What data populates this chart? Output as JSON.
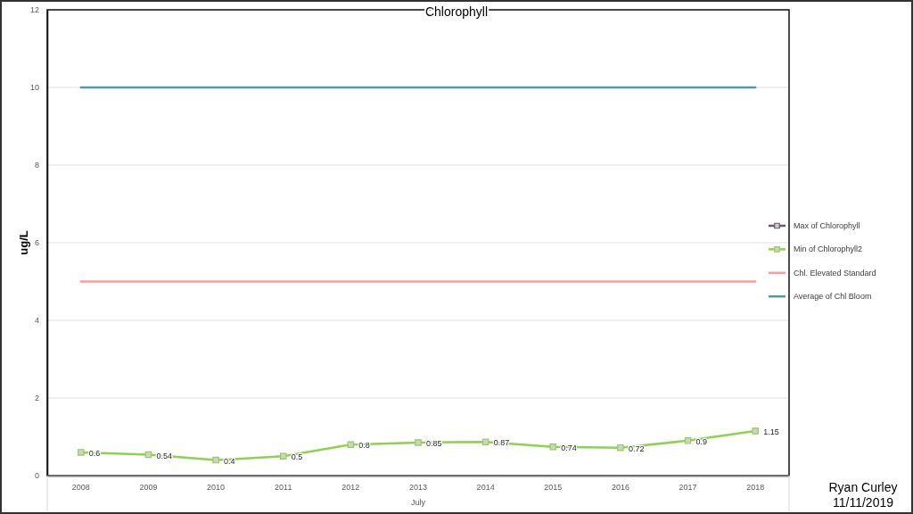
{
  "chart_data": {
    "type": "line",
    "title": "Chlorophyll",
    "ylabel": "ug/L",
    "xlabel": "July",
    "categories": [
      "2008",
      "2009",
      "2010",
      "2011",
      "2012",
      "2013",
      "2014",
      "2015",
      "2016",
      "2017",
      "2018"
    ],
    "series": [
      {
        "name": "Max of Chlorophyll",
        "color": "#6d5a72",
        "values": [
          null,
          null,
          null,
          null,
          null,
          null,
          null,
          null,
          null,
          null,
          null
        ]
      },
      {
        "name": "Min of Chlorophyll2",
        "color": "#92d050",
        "values": [
          0.6,
          0.54,
          0.4,
          0.5,
          0.8,
          0.85,
          0.87,
          0.74,
          0.72,
          0.9,
          1.15
        ],
        "value_labels": [
          "0.6",
          "0.54",
          "0.4",
          "0.5",
          "0.8",
          "0.85",
          "0.87",
          "0.74",
          "0.72",
          "0.9",
          "1.15"
        ]
      },
      {
        "name": "Chl. Elevated Standard",
        "color": "#ff9b9b",
        "marker": "none",
        "values": [
          5,
          5,
          5,
          5,
          5,
          5,
          5,
          5,
          5,
          5,
          5
        ]
      },
      {
        "name": "Average of Chl Bloom",
        "color": "#4f9ca6",
        "marker": "none",
        "values": [
          10,
          10,
          10,
          10,
          10,
          10,
          10,
          10,
          10,
          10,
          10
        ]
      }
    ],
    "ylim": [
      0,
      12
    ],
    "yticks": [
      0,
      2,
      4,
      6,
      8,
      10,
      12
    ],
    "grid": "y",
    "legend": "right",
    "marker": "square",
    "annotations": [
      "Ryan Curley",
      "11/11/2019"
    ]
  }
}
